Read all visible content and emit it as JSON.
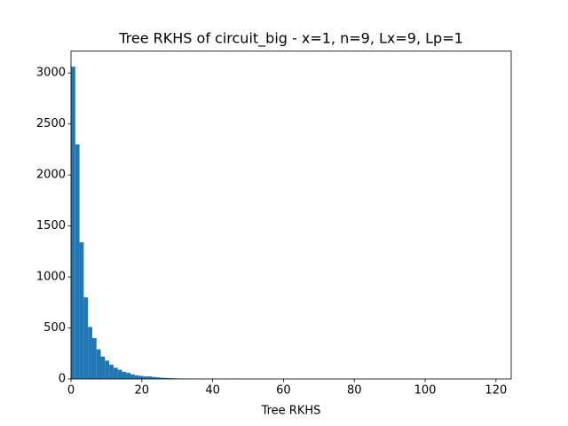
{
  "chart_data": {
    "type": "histogram",
    "title": "Tree RKHS of circuit_big - x=1, n=9, Lx=9, Lp=1",
    "xlabel": "Tree RKHS",
    "color": "#1f77b4",
    "bins": [
      0,
      1.2,
      2.4,
      3.6,
      4.8,
      6,
      7.2,
      8.4,
      9.6,
      10.8,
      12,
      13.2,
      14.4,
      15.6,
      16.8,
      18,
      19.2,
      20.4,
      21.6,
      22.8,
      24,
      25.2,
      26.4,
      27.6,
      28.8,
      30,
      31.2,
      32.4,
      33.6,
      34.8,
      36,
      37.2,
      38.4,
      39.6,
      40.8,
      42,
      43.2,
      44.4,
      45.6,
      46.8,
      48,
      49.2,
      50.4,
      51.6,
      52.8,
      54,
      55.2,
      56.4,
      57.6,
      58.8,
      60,
      61.2,
      62.4,
      63.6,
      64.8,
      66,
      67.2,
      68.4,
      69.6,
      70.8,
      72,
      73.2,
      74.4,
      75.6,
      76.8,
      78,
      79.2,
      80.4,
      81.6,
      82.8,
      84,
      85.2,
      86.4,
      87.6,
      88.8,
      90,
      91.2,
      92.4,
      93.6,
      94.8,
      96,
      97.2,
      98.4,
      99.6,
      100.8,
      102,
      103.2,
      104.4,
      105.6,
      106.8,
      108,
      109.2,
      110.4,
      111.6,
      112.8,
      114,
      115.2,
      116.4,
      117.6,
      118.8,
      120
    ],
    "values": [
      3061,
      2300,
      1340,
      800,
      510,
      400,
      290,
      220,
      180,
      140,
      110,
      90,
      70,
      60,
      45,
      35,
      30,
      25,
      25,
      20,
      15,
      12,
      10,
      8,
      6,
      5,
      4,
      3,
      2,
      2,
      1,
      2,
      1,
      4,
      1,
      2,
      1,
      3,
      1,
      1,
      0,
      1,
      0,
      0,
      1,
      0,
      0,
      0,
      0,
      0,
      0,
      0,
      1,
      0,
      0,
      0,
      0,
      0,
      0,
      0,
      0,
      0,
      0,
      0,
      0,
      0,
      1,
      0,
      0,
      0,
      0,
      0,
      0,
      0,
      0,
      0,
      0,
      0,
      0,
      0,
      0,
      0,
      0,
      0,
      0,
      0,
      0,
      0,
      0,
      0,
      0,
      0,
      0,
      0,
      0,
      0,
      0,
      0,
      0,
      1
    ],
    "xlim": [
      0,
      124.3
    ],
    "ylim": [
      0,
      3214
    ],
    "xticks": [
      0,
      20,
      40,
      60,
      80,
      100,
      120
    ],
    "yticks": [
      0,
      500,
      1000,
      1500,
      2000,
      2500,
      3000
    ]
  }
}
